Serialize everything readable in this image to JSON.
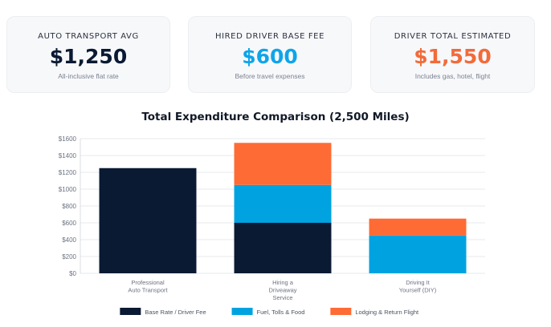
{
  "cards": [
    {
      "label": "AUTO TRANSPORT AVG",
      "value": "$1,250",
      "sub": "All-inclusive flat rate",
      "color": "#0b1a33"
    },
    {
      "label": "HIRED DRIVER BASE FEE",
      "value": "$600",
      "sub": "Before travel expenses",
      "color": "#0ea5e9"
    },
    {
      "label": "DRIVER TOTAL ESTIMATED",
      "value": "$1,550",
      "sub": "Includes gas, hotel, flight",
      "color": "#f26b3a"
    }
  ],
  "chart_title": "Total Expenditure Comparison (2,500 Miles)",
  "chart_data": {
    "type": "bar",
    "stacked": true,
    "title": "Total Expenditure Comparison (2,500 Miles)",
    "categories": [
      [
        "Professional",
        "Auto Transport"
      ],
      [
        "Hiring a",
        "Driveaway",
        "Service"
      ],
      [
        "Driving It",
        "Yourself (DIY)"
      ]
    ],
    "series": [
      {
        "name": "Base Rate / Driver Fee",
        "color": "#0b1a33",
        "values": [
          1250,
          600,
          0
        ]
      },
      {
        "name": "Fuel, Tolls & Food",
        "color": "#00a3e0",
        "values": [
          0,
          450,
          450
        ]
      },
      {
        "name": "Lodging & Return Flight",
        "color": "#ff6b35",
        "values": [
          0,
          500,
          200
        ]
      }
    ],
    "ylim": [
      0,
      1600
    ],
    "yticks": [
      0,
      200,
      400,
      600,
      800,
      1000,
      1200,
      1400,
      1600
    ],
    "ytick_labels": [
      "$0",
      "$200",
      "$400",
      "$600",
      "$800",
      "$1000",
      "$1200",
      "$1400",
      "$1600"
    ],
    "grid": true,
    "legend_position": "bottom"
  }
}
